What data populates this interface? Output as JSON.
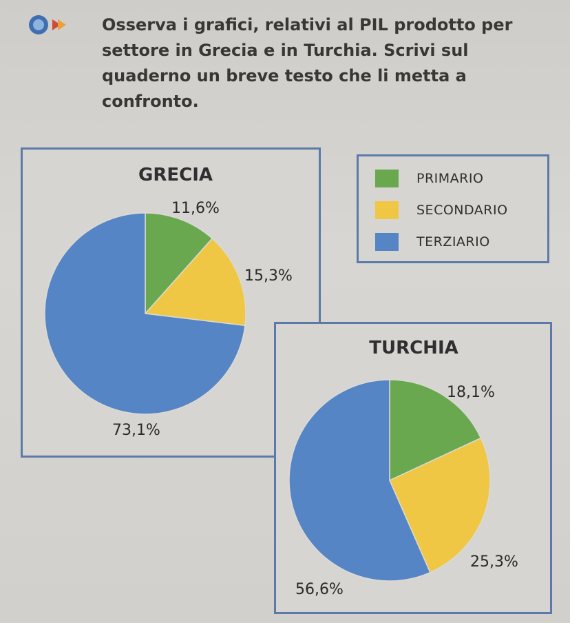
{
  "instruction": "Osserva i grafici, relativi al PIL prodotto per settore in Grecia e in Turchia. Scrivi sul quaderno un breve testo che li metta a confronto.",
  "colors": {
    "primario": "#6aa84f",
    "secondario": "#f0c744",
    "terziario": "#5585c5"
  },
  "legend": [
    {
      "label": "PRIMARIO",
      "color": "#6aa84f"
    },
    {
      "label": "SECONDARIO",
      "color": "#f0c744"
    },
    {
      "label": "TERZIARIO",
      "color": "#5585c5"
    }
  ],
  "chart_data": [
    {
      "type": "pie",
      "title": "GRECIA",
      "categories": [
        "PRIMARIO",
        "SECONDARIO",
        "TERZIARIO"
      ],
      "values": [
        11.6,
        15.3,
        73.1
      ],
      "labels": [
        "11,6%",
        "15,3%",
        "73,1%"
      ]
    },
    {
      "type": "pie",
      "title": "TURCHIA",
      "categories": [
        "PRIMARIO",
        "SECONDARIO",
        "TERZIARIO"
      ],
      "values": [
        18.1,
        25.3,
        56.6
      ],
      "labels": [
        "18,1%",
        "25,3%",
        "56,6%"
      ]
    }
  ]
}
